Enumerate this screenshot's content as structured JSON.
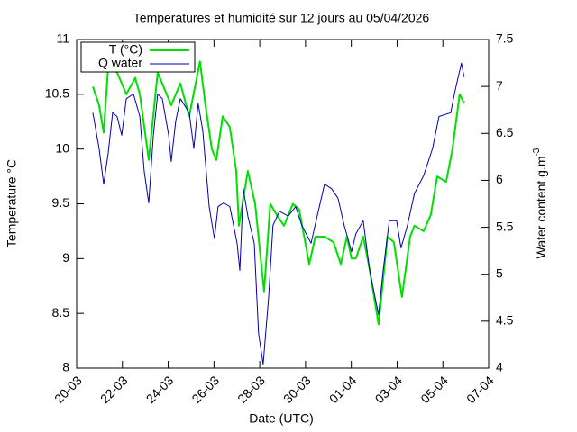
{
  "chart_data": {
    "type": "line",
    "title": "Temperatures et humidité sur 12 jours au 05/04/2026",
    "xlabel": "Date (UTC)",
    "ylabel": "Temperature °C",
    "y2label": "Water content g.m",
    "y2label_superscript": "-3",
    "legend": "upper left",
    "grid": false,
    "xlim": [
      0,
      18
    ],
    "xticks": [
      {
        "value": 0,
        "label": "20-03"
      },
      {
        "value": 2,
        "label": "22-03"
      },
      {
        "value": 4,
        "label": "24-03"
      },
      {
        "value": 6,
        "label": "26-03"
      },
      {
        "value": 8,
        "label": "28-03"
      },
      {
        "value": 10,
        "label": "30-03"
      },
      {
        "value": 12,
        "label": "01-04"
      },
      {
        "value": 14,
        "label": "03-04"
      },
      {
        "value": 16,
        "label": "05-04"
      },
      {
        "value": 18,
        "label": "07-04"
      }
    ],
    "ylim": [
      8,
      11
    ],
    "yticks": [
      8,
      8.5,
      9,
      9.5,
      10,
      10.5,
      11
    ],
    "y2lim": [
      4,
      7.5
    ],
    "y2ticks": [
      4,
      4.5,
      5,
      5.5,
      6,
      6.5,
      7,
      7.5
    ],
    "series": [
      {
        "name": "T (°C)",
        "color": "#00e000",
        "axis": "y",
        "x": [
          0.71,
          0.98,
          1.18,
          1.38,
          1.77,
          2.17,
          2.56,
          2.76,
          3.15,
          3.54,
          4.13,
          4.53,
          4.92,
          5.39,
          5.63,
          5.91,
          6.1,
          6.38,
          6.69,
          6.97,
          7.09,
          7.48,
          7.8,
          8.19,
          8.46,
          8.74,
          9.06,
          9.45,
          9.72,
          10.16,
          10.43,
          10.83,
          11.22,
          11.54,
          11.81,
          12.01,
          12.2,
          12.52,
          12.8,
          13.19,
          13.58,
          13.86,
          14.21,
          14.57,
          14.76,
          15.16,
          15.47,
          15.75,
          16.14,
          16.42,
          16.73,
          16.93
        ],
        "values": [
          10.57,
          10.4,
          10.15,
          10.75,
          10.7,
          10.5,
          10.65,
          10.5,
          9.9,
          10.7,
          10.4,
          10.6,
          10.3,
          10.8,
          10.4,
          10.0,
          9.9,
          10.3,
          10.2,
          9.8,
          9.3,
          9.8,
          9.5,
          8.7,
          9.5,
          9.4,
          9.3,
          9.5,
          9.45,
          8.95,
          9.2,
          9.2,
          9.15,
          8.95,
          9.2,
          9.0,
          9.0,
          9.2,
          8.9,
          8.4,
          9.2,
          9.15,
          8.65,
          9.2,
          9.3,
          9.25,
          9.4,
          9.75,
          9.7,
          10.0,
          10.5,
          10.42
        ]
      },
      {
        "name": "Q water",
        "color": "#0000b0",
        "axis": "y2",
        "x": [
          0.71,
          0.98,
          1.18,
          1.38,
          1.57,
          1.77,
          1.97,
          2.17,
          2.48,
          2.76,
          2.95,
          3.15,
          3.35,
          3.54,
          3.74,
          4.02,
          4.13,
          4.33,
          4.53,
          4.92,
          5.12,
          5.31,
          5.51,
          5.79,
          6.02,
          6.18,
          6.42,
          6.69,
          7.01,
          7.13,
          7.28,
          7.48,
          7.76,
          7.95,
          8.15,
          8.39,
          8.58,
          8.86,
          9.25,
          9.57,
          9.84,
          10.24,
          10.51,
          10.83,
          11.14,
          11.42,
          11.69,
          12.01,
          12.2,
          12.52,
          12.8,
          13.19,
          13.39,
          13.66,
          13.98,
          14.17,
          14.45,
          14.76,
          15.16,
          15.55,
          15.83,
          16.34,
          16.54,
          16.81,
          16.93
        ],
        "values": [
          6.72,
          6.34,
          5.96,
          6.29,
          6.72,
          6.68,
          6.48,
          6.87,
          6.92,
          6.68,
          6.1,
          5.76,
          6.48,
          6.92,
          6.87,
          6.48,
          6.2,
          6.63,
          6.87,
          6.72,
          6.34,
          6.82,
          6.53,
          5.72,
          5.38,
          5.72,
          5.76,
          5.72,
          5.33,
          5.04,
          5.91,
          5.62,
          5.33,
          4.37,
          4.04,
          4.76,
          5.52,
          5.67,
          5.62,
          5.72,
          5.52,
          5.33,
          5.62,
          5.96,
          5.91,
          5.81,
          5.52,
          5.24,
          5.43,
          5.57,
          5.04,
          4.57,
          5.04,
          5.57,
          5.57,
          5.28,
          5.52,
          5.86,
          6.05,
          6.34,
          6.68,
          6.72,
          6.96,
          7.25,
          7.1
        ]
      }
    ]
  }
}
